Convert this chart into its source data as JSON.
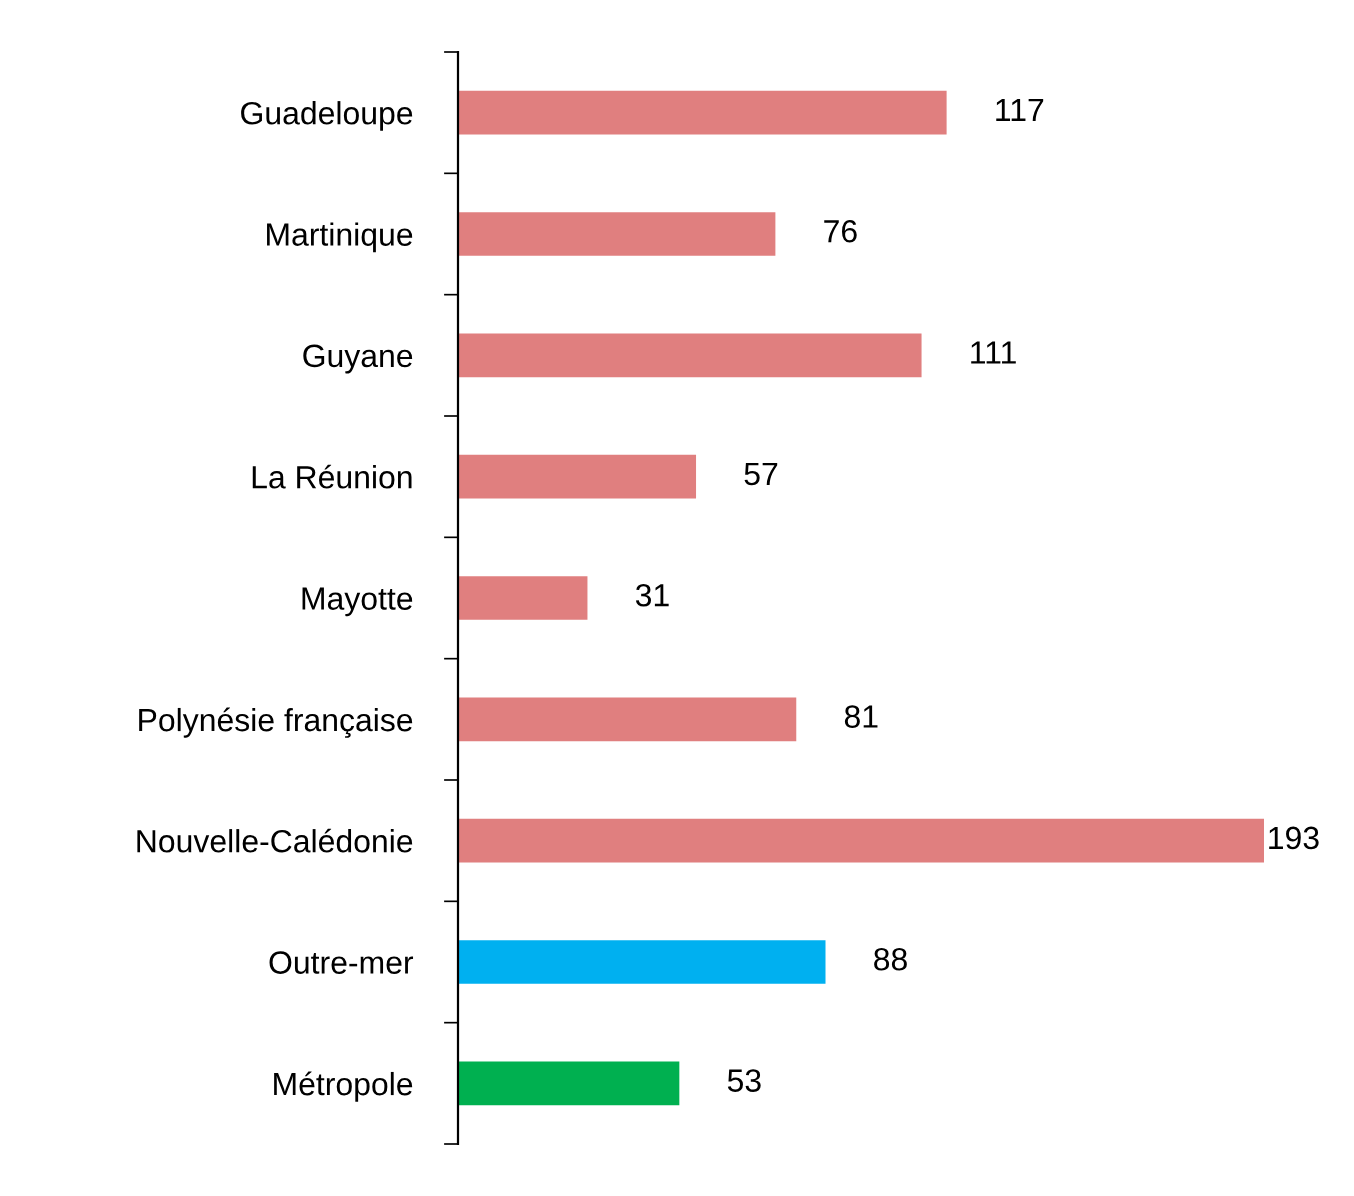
{
  "chart_data": {
    "type": "bar",
    "orientation": "horizontal",
    "categories": [
      "Guadeloupe",
      "Martinique",
      "Guyane",
      "La Réunion",
      "Mayotte",
      "Polynésie française",
      "Nouvelle-Calédonie",
      "Outre-mer",
      "Métropole"
    ],
    "values": [
      117,
      76,
      111,
      57,
      31,
      81,
      193,
      88,
      53
    ],
    "colors": [
      "#e07f7f",
      "#e07f7f",
      "#e07f7f",
      "#e07f7f",
      "#e07f7f",
      "#e07f7f",
      "#e07f7f",
      "#00b0f0",
      "#00b050"
    ],
    "data_labels": true,
    "grid": false,
    "legend": false,
    "tick_labels": "y"
  }
}
